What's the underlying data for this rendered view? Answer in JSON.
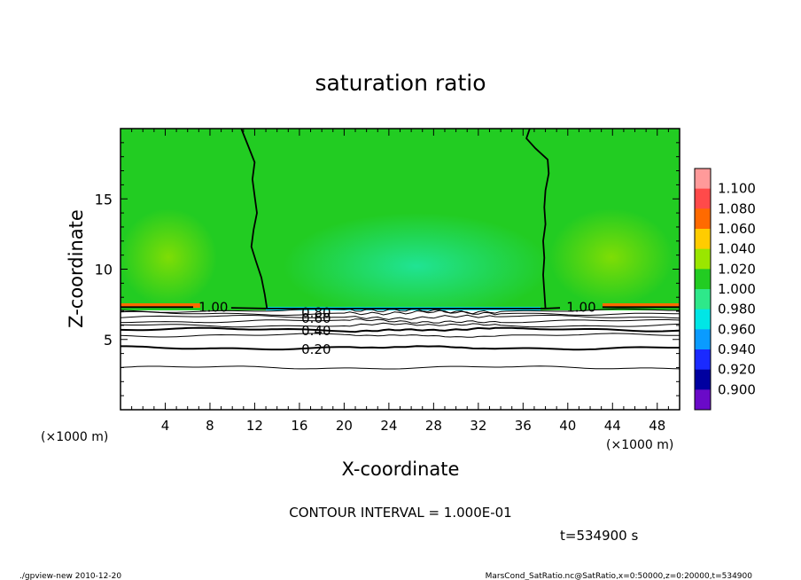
{
  "chart_data": {
    "type": "heatmap",
    "title": "saturation ratio",
    "xlabel": "X-coordinate",
    "ylabel": "Z-coordinate",
    "x_unit": "(×1000 m)",
    "z_unit": "(×1000 m)",
    "xlim": [
      0,
      50
    ],
    "zlim": [
      0,
      20
    ],
    "x_ticks": [
      4,
      8,
      12,
      16,
      20,
      24,
      28,
      32,
      36,
      40,
      44,
      48
    ],
    "z_ticks": [
      5,
      10,
      15
    ],
    "colorbar": {
      "levels": [
        "1.100",
        "1.080",
        "1.060",
        "1.040",
        "1.020",
        "1.000",
        "0.980",
        "0.960",
        "0.940",
        "0.920",
        "0.900"
      ],
      "colors": [
        "#ff9a9a",
        "#ff4a4a",
        "#ff6a00",
        "#ffcc00",
        "#9ae600",
        "#22cc22",
        "#2ee88a",
        "#00e6e6",
        "#0a9bff",
        "#1a2aff",
        "#0000a0",
        "#6a0ac8"
      ]
    },
    "contour_labels": [
      {
        "text": "1.00",
        "x": 8.3,
        "z": 7.3
      },
      {
        "text": "1.00",
        "x": 41.2,
        "z": 7.3
      },
      {
        "text": "0.80",
        "x": 17.5,
        "z": 6.9
      },
      {
        "text": "0.60",
        "x": 17.5,
        "z": 6.5
      },
      {
        "text": "0.40",
        "x": 17.5,
        "z": 5.6
      },
      {
        "text": "0.20",
        "x": 17.5,
        "z": 4.3
      }
    ],
    "contour_interval": "CONTOUR INTERVAL = 1.000E-01",
    "time_label": "t=534900 s"
  },
  "footer": {
    "left": "./gpview-new  2010-12-20",
    "right": "MarsCond_SatRatio.nc@SatRatio,x=0:50000,z=0:20000,t=534900"
  }
}
